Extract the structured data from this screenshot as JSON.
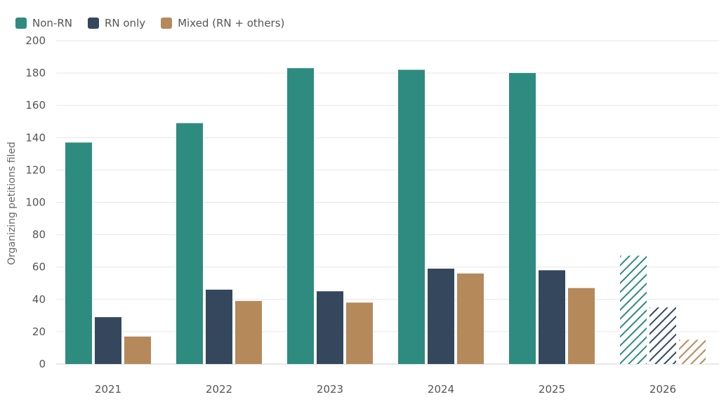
{
  "chart_data": {
    "type": "bar",
    "categories": [
      "2021",
      "2022",
      "2023",
      "2024",
      "2025",
      "2026"
    ],
    "series": [
      {
        "name": "Non-RN",
        "color": "#2e8b7f",
        "values": [
          137,
          149,
          183,
          182,
          180,
          67
        ]
      },
      {
        "name": "RN only",
        "color": "#34475c",
        "values": [
          29,
          46,
          45,
          59,
          58,
          35
        ]
      },
      {
        "name": "Mixed (RN + others)",
        "color": "#b5895a",
        "values": [
          17,
          39,
          38,
          56,
          47,
          15
        ]
      }
    ],
    "hatched_categories": [
      "2026"
    ],
    "ylabel": "Organizing petitions filed",
    "xlabel": "",
    "ylim": [
      0,
      200
    ],
    "yticks": [
      0,
      20,
      40,
      60,
      80,
      100,
      120,
      140,
      160,
      180,
      200
    ],
    "grid": true,
    "legend_position": "top-left"
  }
}
